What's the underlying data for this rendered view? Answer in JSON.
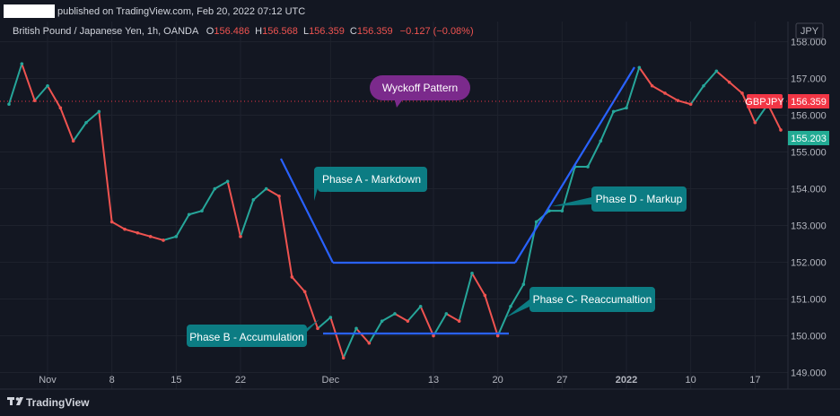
{
  "header": {
    "published": "published on TradingView.com, Feb 20, 2022 07:12 UTC",
    "symbol": "British Pound / Japanese Yen, 1h, OANDA",
    "o_label": "O",
    "o_value": "156.486",
    "h_label": "H",
    "h_value": "156.568",
    "l_label": "L",
    "l_value": "156.359",
    "c_label": "C",
    "c_value": "156.359",
    "change": "−0.127 (−0.08%)"
  },
  "currency": "JPY",
  "footer": {
    "brand": "TradingView"
  },
  "colors": {
    "background": "#131722",
    "up": "#26a69a",
    "down": "#ef5350",
    "trendline": "#2962ff",
    "bubble": "#0c7c83",
    "title_bubble": "#7b2a8c",
    "price_tag": "#f23645",
    "level_tag": "#22ab94"
  },
  "chart_data": {
    "type": "line",
    "title": "",
    "series": [
      {
        "x": [
          "Oct 27",
          "Oct 28",
          "Oct 29",
          "Nov 1",
          "Nov 2",
          "Nov 3",
          "Nov 4",
          "Nov 5",
          "Nov 8",
          "Nov 9",
          "Nov 10",
          "Nov 11",
          "Nov 12",
          "Nov 15",
          "Nov 16",
          "Nov 17",
          "Nov 18",
          "Nov 19",
          "Nov 22",
          "Nov 23",
          "Nov 24",
          "Nov 25",
          "Nov 26",
          "Nov 29",
          "Nov 30",
          "Dec 1",
          "Dec 2",
          "Dec 3",
          "Dec 6",
          "Dec 7",
          "Dec 8",
          "Dec 9",
          "Dec 10",
          "Dec 13",
          "Dec 14",
          "Dec 15",
          "Dec 16",
          "Dec 17",
          "Dec 20",
          "Dec 21",
          "Dec 22",
          "Dec 23",
          "Dec 24",
          "Dec 27",
          "Dec 28",
          "Dec 29",
          "Dec 30",
          "Dec 31",
          "Jan 3",
          "Jan 4",
          "Jan 5",
          "Jan 6",
          "Jan 7",
          "Jan 10",
          "Jan 11",
          "Jan 12",
          "Jan 13",
          "Jan 14",
          "Jan 17",
          "Jan 18",
          "Jan 19"
        ],
        "values": [
          156.3,
          157.4,
          156.4,
          156.8,
          156.2,
          155.3,
          155.8,
          156.1,
          153.1,
          152.9,
          152.8,
          152.7,
          152.6,
          152.7,
          153.3,
          153.4,
          154.0,
          154.2,
          152.7,
          153.7,
          154.0,
          153.8,
          151.6,
          151.2,
          150.2,
          150.5,
          149.4,
          150.2,
          149.8,
          150.4,
          150.6,
          150.4,
          150.8,
          150.0,
          150.6,
          150.4,
          151.7,
          151.1,
          150.0,
          150.8,
          151.4,
          153.1,
          153.4,
          153.4,
          154.6,
          154.6,
          155.3,
          156.1,
          156.2,
          157.3,
          156.8,
          156.6,
          156.4,
          156.3,
          156.8,
          157.2,
          156.9,
          156.6,
          155.8,
          156.3,
          155.6
        ]
      }
    ],
    "x_ticks": [
      {
        "label": "Nov",
        "i": 3
      },
      {
        "label": "8",
        "i": 8
      },
      {
        "label": "15",
        "i": 13
      },
      {
        "label": "22",
        "i": 18
      },
      {
        "label": "Dec",
        "i": 25
      },
      {
        "label": "13",
        "i": 33
      },
      {
        "label": "20",
        "i": 38
      },
      {
        "label": "27",
        "i": 43
      },
      {
        "label": "2022",
        "i": 48
      },
      {
        "label": "10",
        "i": 53
      },
      {
        "label": "17",
        "i": 58
      }
    ],
    "y_ticks": [
      "158.000",
      "157.000",
      "156.000",
      "155.000",
      "154.000",
      "153.000",
      "152.000",
      "151.000",
      "150.000",
      "149.000"
    ],
    "ylim": [
      148.55,
      158.55
    ],
    "last_price": {
      "label": "GBPJPY",
      "value": "156.359"
    },
    "marker_level": {
      "value": "155.203"
    },
    "annotations": {
      "title": "Wyckoff Pattern",
      "phase_a": "Phase A - Markdown",
      "phase_b": "Phase B - Accumulation",
      "phase_c": "Phase C- Reaccumaltion",
      "phase_d": "Phase D - Markup"
    }
  }
}
